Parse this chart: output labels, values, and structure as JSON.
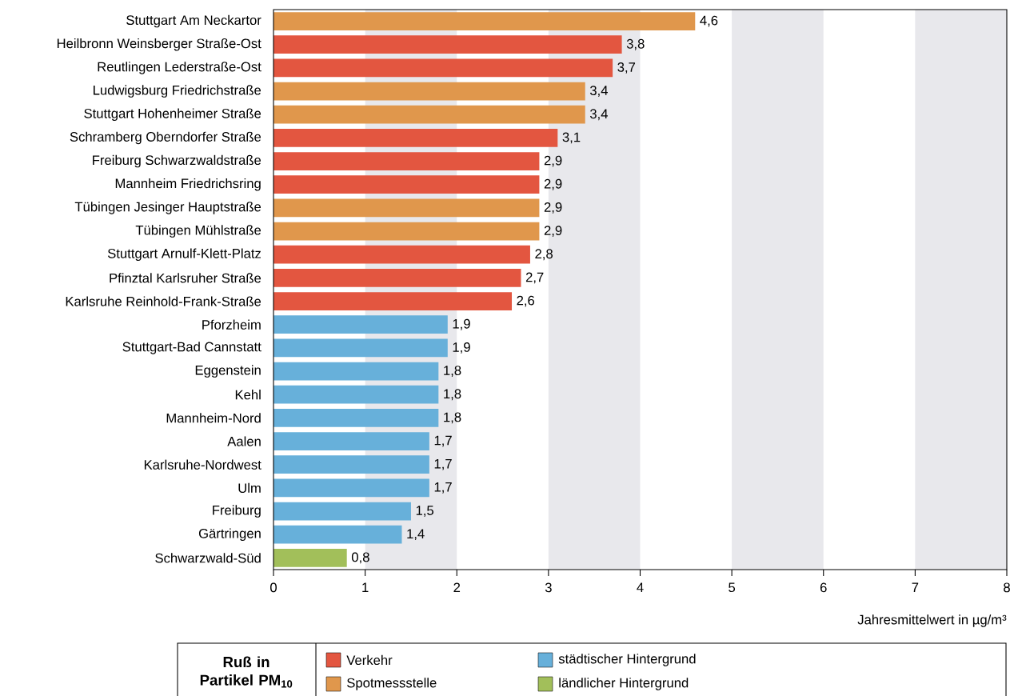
{
  "chart_data": {
    "type": "bar",
    "orientation": "horizontal",
    "legend": "bottom",
    "legend_title": "**Ruß in Partikel PM$_{10}$**",
    "xlabel": "Jahresmittelwert in µg/m³",
    "categories": [
      "Stuttgart Am Neckartor",
      "Heilbronn Weinsberger Straße-Ost",
      "Reutlingen Lederstraße-Ost",
      "Ludwigsburg Friedrichstraße",
      "Stuttgart Hohenheimer Straße",
      "Schramberg Oberndorfer Straße",
      "Freiburg Schwarzwaldstraße",
      "Mannheim Friedrichsring",
      "Tübingen Jesinger Hauptstraße",
      "Tübingen Mühlstraße",
      "Stuttgart Arnulf-Klett-Platz",
      "Pfinztal Karlsruher Straße",
      "Karlsruhe Reinhold-Frank-Straße",
      "Pforzheim",
      "Stuttgart-Bad Cannstatt",
      "Eggenstein",
      "Kehl",
      "Mannheim-Nord",
      "Aalen",
      "Karlsruhe-Nordwest",
      "Ulm",
      "Freiburg",
      "Gärtringen",
      "Schwarzwald-Süd"
    ],
    "series": [
      {
        "name": "Verkehr",
        "color": "#e35640",
        "values": [
          null,
          3.8,
          3.7,
          null,
          null,
          3.1,
          2.9,
          2.9,
          null,
          null,
          2.8,
          2.7,
          2.6,
          null,
          null,
          null,
          null,
          null,
          null,
          null,
          null,
          null,
          null,
          null
        ],
        "value_labels": [
          null,
          "3,8",
          "3,7",
          null,
          null,
          "3,1",
          "2,9",
          "2,9",
          null,
          null,
          "2,8",
          "2,7",
          "2,6",
          null,
          null,
          null,
          null,
          null,
          null,
          null,
          null,
          null,
          null,
          null
        ]
      },
      {
        "name": "Spotmessstelle",
        "color": "#e0974c",
        "values": [
          4.6,
          null,
          null,
          3.4,
          3.4,
          null,
          null,
          null,
          2.9,
          2.9,
          null,
          null,
          null,
          null,
          null,
          null,
          null,
          null,
          null,
          null,
          null,
          null,
          null,
          null
        ],
        "value_labels": [
          "4,6",
          null,
          null,
          "3,4",
          "3,4",
          null,
          null,
          null,
          "2,9",
          "2,9",
          null,
          null,
          null,
          null,
          null,
          null,
          null,
          null,
          null,
          null,
          null,
          null,
          null,
          null
        ]
      },
      {
        "name": "städtischer Hintergrund",
        "color": "#67b0da",
        "values": [
          null,
          null,
          null,
          null,
          null,
          null,
          null,
          null,
          null,
          null,
          null,
          null,
          null,
          1.9,
          1.9,
          1.8,
          1.8,
          1.8,
          1.7,
          1.7,
          1.7,
          1.5,
          1.4,
          null
        ],
        "value_labels": [
          null,
          null,
          null,
          null,
          null,
          null,
          null,
          null,
          null,
          null,
          null,
          null,
          null,
          "1,9",
          "1,9",
          "1,8",
          "1,8",
          "1,8",
          "1,7",
          "1,7",
          "1,7",
          "1,5",
          "1,4",
          null
        ]
      },
      {
        "name": "ländlicher Hintergrund",
        "color": "#a2bf5a",
        "values": [
          null,
          null,
          null,
          null,
          null,
          null,
          null,
          null,
          null,
          null,
          null,
          null,
          null,
          null,
          null,
          null,
          null,
          null,
          null,
          null,
          null,
          null,
          null,
          0.8
        ],
        "value_labels": [
          null,
          null,
          null,
          null,
          null,
          null,
          null,
          null,
          null,
          null,
          null,
          null,
          null,
          null,
          null,
          null,
          null,
          null,
          null,
          null,
          null,
          null,
          null,
          "0,8"
        ]
      }
    ],
    "xlim": [
      0,
      8
    ],
    "xticks": [
      0,
      1,
      2,
      3,
      4,
      5,
      6,
      7,
      8
    ],
    "bands": [
      {
        "axis": "x",
        "from": 1,
        "to": 2,
        "color": "#e8e8ec"
      },
      {
        "axis": "x",
        "from": 3,
        "to": 4,
        "color": "#e8e8ec"
      },
      {
        "axis": "x",
        "from": 5,
        "to": 6,
        "color": "#e8e8ec"
      },
      {
        "axis": "x",
        "from": 7,
        "to": 8,
        "color": "#e8e8ec"
      }
    ]
  }
}
